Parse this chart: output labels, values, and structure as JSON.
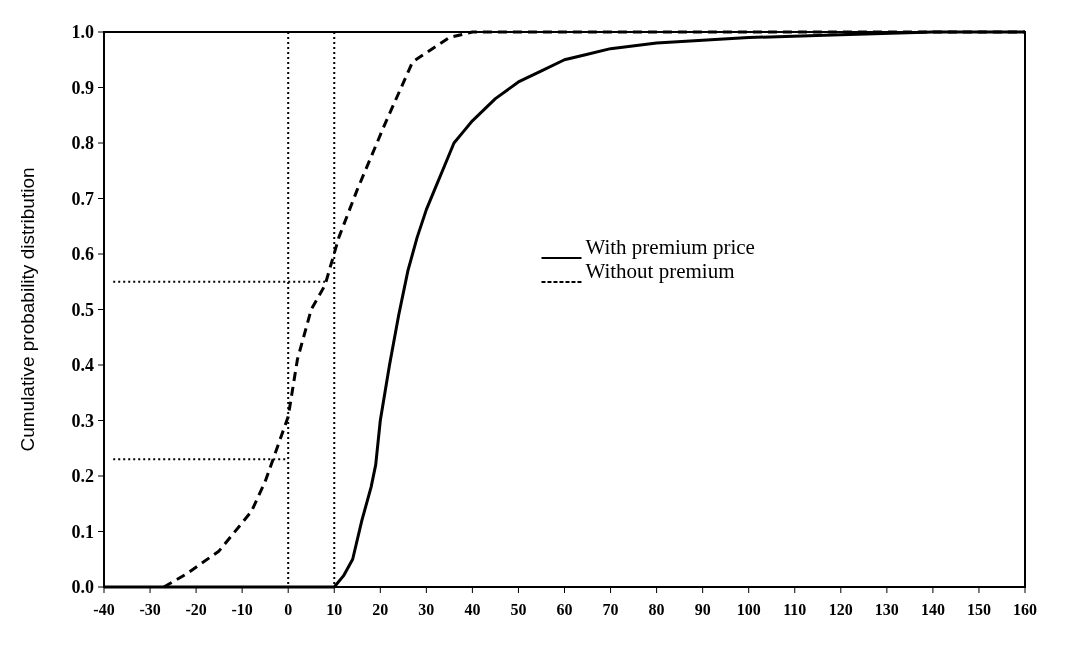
{
  "chart_data": {
    "type": "line",
    "ylabel": "Cumulative probability distribution",
    "xlim": [
      -40,
      160
    ],
    "xticks": [
      -40,
      -30,
      -20,
      -10,
      0,
      10,
      20,
      30,
      40,
      50,
      60,
      70,
      80,
      90,
      100,
      110,
      120,
      130,
      140,
      150,
      160
    ],
    "ylim": [
      0,
      1
    ],
    "yticks": [
      {
        "value": 0,
        "label": "0.0"
      },
      {
        "value": 0.1,
        "label": "0.1"
      },
      {
        "value": 0.2,
        "label": "0.2"
      },
      {
        "value": 0.3,
        "label": "0.3"
      },
      {
        "value": 0.4,
        "label": "0.4"
      },
      {
        "value": 0.5,
        "label": "0.5"
      },
      {
        "value": 0.6,
        "label": "0.6"
      },
      {
        "value": 0.7,
        "label": "0.7"
      },
      {
        "value": 0.8,
        "label": "0.8"
      },
      {
        "value": 0.9,
        "label": "0.9"
      },
      {
        "value": 1,
        "label": "1.0"
      }
    ],
    "legend": "right",
    "series": [
      {
        "name": "With premium price",
        "color": "#000000",
        "line_style": "solid",
        "x": [
          -40,
          10,
          12,
          14,
          16,
          18,
          19,
          20,
          22,
          24,
          26,
          28,
          30,
          32,
          34,
          36,
          38,
          40,
          45,
          50,
          55,
          60,
          65,
          70,
          80,
          90,
          100,
          120,
          140,
          160
        ],
        "values": [
          0,
          0,
          0.02,
          0.05,
          0.12,
          0.18,
          0.22,
          0.3,
          0.4,
          0.49,
          0.57,
          0.63,
          0.68,
          0.72,
          0.76,
          0.8,
          0.82,
          0.84,
          0.88,
          0.91,
          0.93,
          0.95,
          0.96,
          0.97,
          0.98,
          0.985,
          0.99,
          0.995,
          1,
          1
        ]
      },
      {
        "name": "Without premium",
        "color": "#000000",
        "line_style": "dashed",
        "x": [
          -27,
          -22,
          -15,
          -8,
          -5,
          0,
          2,
          5,
          8,
          11,
          15,
          21,
          27,
          35,
          40,
          160
        ],
        "values": [
          0,
          0.024,
          0.065,
          0.136,
          0.19,
          0.307,
          0.41,
          0.5,
          0.544,
          0.63,
          0.716,
          0.834,
          0.946,
          0.99,
          1,
          1
        ]
      },
      {
        "color": "#000000",
        "line_style": "dotted",
        "x": [
          -38,
          8
        ],
        "values": [
          0.55,
          0.55
        ]
      },
      {
        "color": "#000000",
        "line_style": "dotted",
        "x": [
          -38,
          0
        ],
        "values": [
          0.23,
          0.23
        ]
      }
    ],
    "ref_lines": [
      {
        "axis": "x",
        "value": 0,
        "line_style": "dotted",
        "color": "#000000"
      },
      {
        "axis": "x",
        "value": 10,
        "line_style": "dotted",
        "color": "#000000"
      }
    ]
  }
}
